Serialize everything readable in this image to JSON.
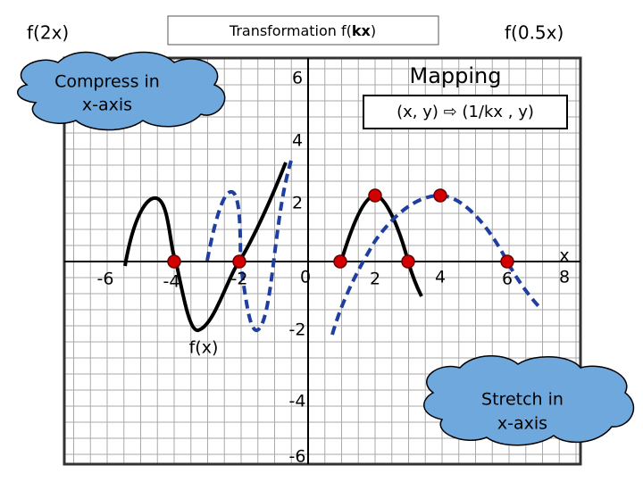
{
  "header": {
    "left_label": "f(2x)",
    "title_parts": [
      "Transformation f(",
      "kx",
      ")"
    ],
    "right_label": "f(0.5x)"
  },
  "callouts": {
    "compress": [
      "Compress in",
      "x-axis"
    ],
    "stretch": [
      "Stretch in",
      "x-axis"
    ]
  },
  "mapping": {
    "title": "Mapping",
    "rule": "(x, y) ⇨ (1/kx , y)"
  },
  "graph": {
    "x_tick_labels": [
      "-6",
      "-4",
      "-2",
      "0",
      "2",
      "4",
      "6",
      "8"
    ],
    "y_tick_labels": [
      "6",
      "4",
      "2",
      "-2",
      "-4",
      "-6"
    ],
    "x_axis_label": "x",
    "curve_label": "f(x)"
  }
}
